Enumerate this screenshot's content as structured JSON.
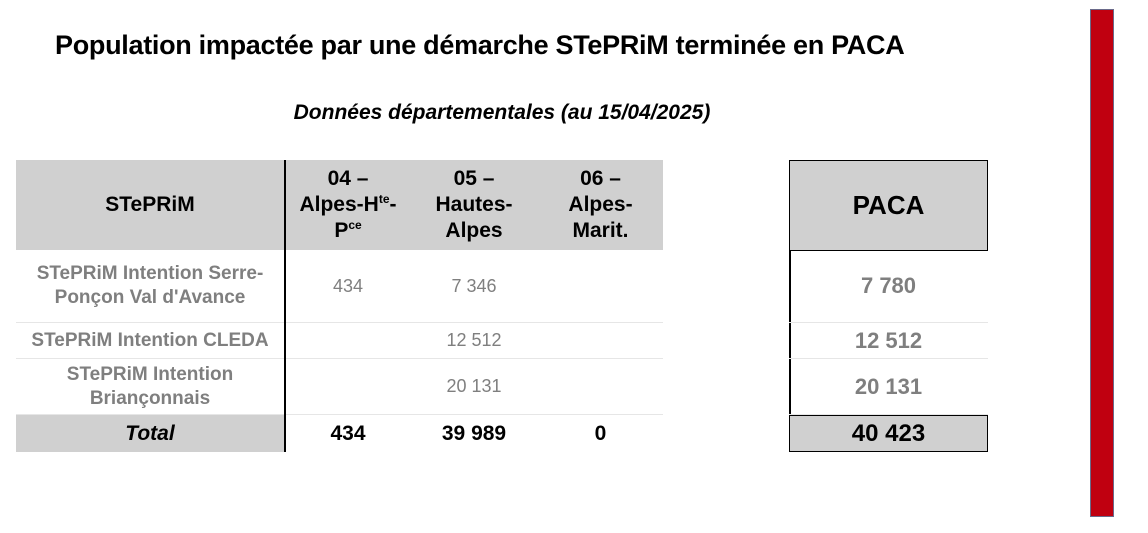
{
  "title": "Population impactée par une démarche STePRiM terminée en PACA",
  "subtitle": "Données départementales (au 15/04/2025)",
  "table": {
    "header": {
      "steprim": "STePRiM",
      "col04_line1": "04 –",
      "col04_line2_pre": "Alpes-H",
      "col04_line2_sup": "te",
      "col04_line2_post": "-",
      "col04_line3_pre": "P",
      "col04_line3_sup": "ce",
      "col05_line1": "05 –",
      "col05_line2": "Hautes-",
      "col05_line3": "Alpes",
      "col06_line1": "06 –",
      "col06_line2": "Alpes-",
      "col06_line3": "Marit.",
      "paca": "PACA"
    },
    "rows": [
      {
        "label": "STePRiM Intention Serre-Ponçon Val d'Avance",
        "c04": "434",
        "c05": "7 346",
        "c06": "",
        "paca": "7 780"
      },
      {
        "label": "STePRiM Intention CLEDA",
        "c04": "",
        "c05": "12 512",
        "c06": "",
        "paca": "12 512"
      },
      {
        "label": "STePRiM Intention Briançonnais",
        "c04": "",
        "c05": "20 131",
        "c06": "",
        "paca": "20 131"
      }
    ],
    "total": {
      "label": "Total",
      "c04": "434",
      "c05": "39 989",
      "c06": "0",
      "paca": "40 423"
    }
  },
  "colors": {
    "accent_bar": "#c00010",
    "header_bg": "#d0d0d0",
    "muted_text": "#7f7f7f"
  }
}
